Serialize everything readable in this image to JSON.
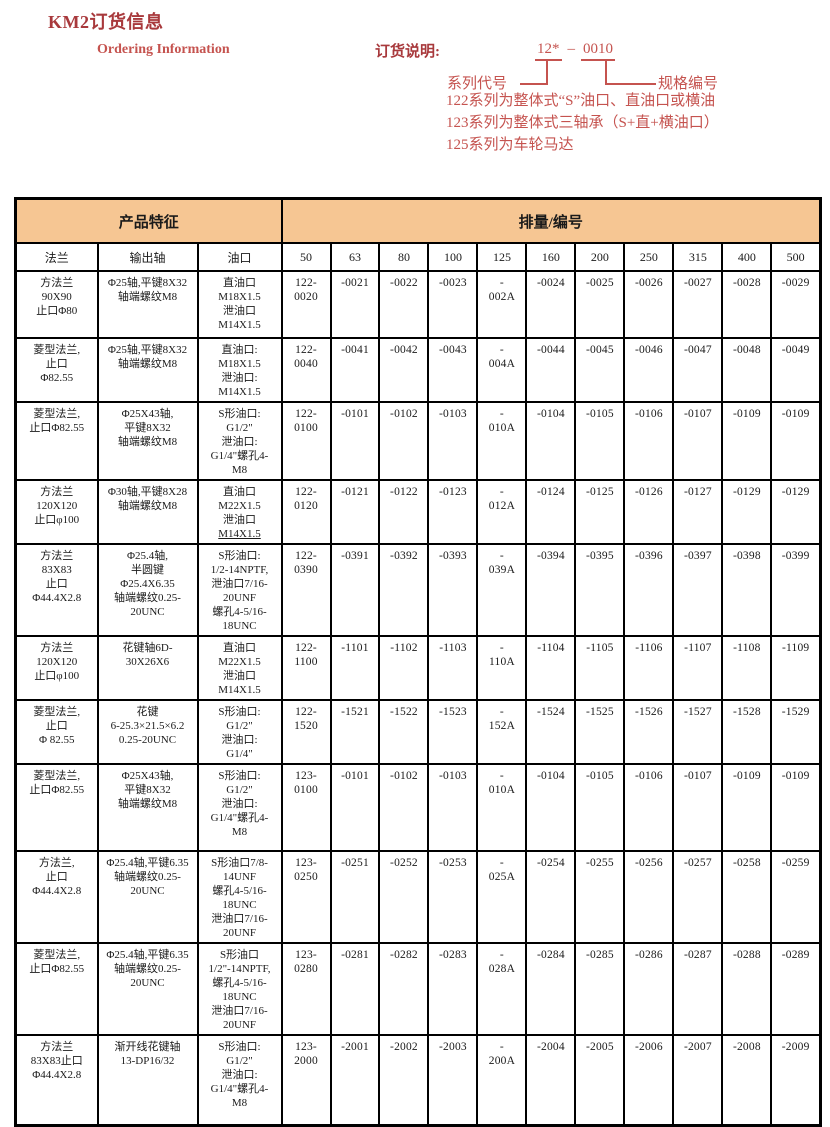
{
  "header": {
    "title": "KM2订货信息",
    "subtitle_en": "Ordering Information",
    "ordering_label": "订货说明:",
    "code_prefix": "12*",
    "code_dash": "–",
    "code_suffix": "0010",
    "series_label": "系列代号",
    "spec_label": "规格编号",
    "notes": [
      "122系列为整体式“S”油口、直油口或横油",
      "123系列为整体式三轴承（S+直+横油口）",
      "125系列为车轮马达"
    ]
  },
  "colors": {
    "title_red": "#a8393c",
    "accent_red": "#c5534f",
    "table_header_fill": "#f6c693",
    "border_black": "#000000"
  },
  "table": {
    "group_headers": {
      "features": "产品特征",
      "displacement": "排量/编号"
    },
    "feature_columns": [
      "法兰",
      "输出轴",
      "油口"
    ],
    "displacement_columns": [
      "50",
      "63",
      "80",
      "100",
      "125",
      "160",
      "200",
      "250",
      "315",
      "400",
      "500"
    ],
    "rows": [
      {
        "flange": "方法兰\n90X90\n止口Φ80",
        "shaft": "Φ25轴,平键8X32\n轴端螺纹M8",
        "port": "直油口\nM18X1.5\n泄油口\nM14X1.5",
        "port_underline_last": false,
        "codes": [
          "122-\n0020",
          "-0021",
          "-0022",
          "-0023",
          "-\n002A",
          "-0024",
          "-0025",
          "-0026",
          "-0027",
          "-0028",
          "-0029"
        ]
      },
      {
        "flange": "菱型法兰,\n止口\nΦ82.55",
        "shaft": "Φ25轴,平键8X32\n轴端螺纹M8",
        "port": "直油口:\nM18X1.5\n泄油口:\nM14X1.5",
        "port_underline_last": false,
        "codes": [
          "122-\n0040",
          "-0041",
          "-0042",
          "-0043",
          "-\n004A",
          "-0044",
          "-0045",
          "-0046",
          "-0047",
          "-0048",
          "-0049"
        ]
      },
      {
        "flange": "菱型法兰,\n止口Φ82.55",
        "shaft": "Φ25X43轴,\n平键8X32\n轴端螺纹M8",
        "port": "S形油口:\nG1/2\"\n泄油口:\nG1/4\"螺孔4-\nM8",
        "port_underline_last": false,
        "codes": [
          "122-\n0100",
          "-0101",
          "-0102",
          "-0103",
          "-\n010A",
          "-0104",
          "-0105",
          "-0106",
          "-0107",
          "-0109",
          "-0109"
        ]
      },
      {
        "flange": "方法兰\n120X120\n止口φ100",
        "shaft": "Φ30轴,平键8X28\n轴端螺纹M8",
        "port": "直油口\nM22X1.5\n泄油口\nM14X1.5",
        "port_underline_last": true,
        "codes": [
          "122-\n0120",
          "-0121",
          "-0122",
          "-0123",
          "-\n012A",
          "-0124",
          "-0125",
          "-0126",
          "-0127",
          "-0129",
          "-0129"
        ]
      },
      {
        "flange": "方法兰\n83X83\n止口\nΦ44.4X2.8",
        "shaft": "Φ25.4轴,\n半圆键\nΦ25.4X6.35\n轴端螺纹0.25-\n20UNC",
        "port": "S形油口:\n1/2-14NPTF,\n泄油口7/16-\n20UNF\n螺孔4-5/16-\n18UNC",
        "port_underline_last": false,
        "codes": [
          "122-\n0390",
          "-0391",
          "-0392",
          "-0393",
          "-\n039A",
          "-0394",
          "-0395",
          "-0396",
          "-0397",
          "-0398",
          "-0399"
        ]
      },
      {
        "flange": "方法兰\n120X120\n止口φ100",
        "shaft": "花键轴6D-\n30X26X6",
        "port": "直油口\nM22X1.5\n泄油口\nM14X1.5",
        "port_underline_last": false,
        "codes": [
          "122-\n1100",
          "-1101",
          "-1102",
          "-1103",
          "-\n110A",
          "-1104",
          "-1105",
          "-1106",
          "-1107",
          "-1108",
          "-1109"
        ]
      },
      {
        "flange": "菱型法兰,\n止口\nΦ 82.55",
        "shaft": "花键\n6-25.3×21.5×6.2\n0.25-20UNC",
        "port": "S形油口:\nG1/2\"\n泄油口:\nG1/4\"",
        "port_underline_last": false,
        "codes": [
          "122-\n1520",
          "-1521",
          "-1522",
          "-1523",
          "-\n152A",
          "-1524",
          "-1525",
          "-1526",
          "-1527",
          "-1528",
          "-1529"
        ]
      },
      {
        "flange": "菱型法兰,\n止口Φ82.55",
        "shaft": "Φ25X43轴,\n平键8X32\n轴端螺纹M8",
        "port": "S形油口:\nG1/2\"\n泄油口:\nG1/4\"螺孔4-\nM8",
        "port_underline_last": false,
        "codes": [
          "123-\n0100",
          "-0101",
          "-0102",
          "-0103",
          "-\n010A",
          "-0104",
          "-0105",
          "-0106",
          "-0107",
          "-0109",
          "-0109"
        ]
      },
      {
        "flange": "方法兰,\n止口\nΦ44.4X2.8",
        "shaft": "Φ25.4轴,平键6.35\n轴端螺纹0.25-\n20UNC",
        "port": "S形油口7/8-\n14UNF\n螺孔4-5/16-\n18UNC\n泄油口7/16-\n20UNF",
        "port_underline_last": false,
        "codes": [
          "123-\n0250",
          "-0251",
          "-0252",
          "-0253",
          "-\n025A",
          "-0254",
          "-0255",
          "-0256",
          "-0257",
          "-0258",
          "-0259"
        ]
      },
      {
        "flange": "菱型法兰,\n止口Φ82.55",
        "shaft": "Φ25.4轴,平键6.35\n轴端螺纹0.25-\n20UNC",
        "port": "S形油口\n1/2\"-14NPTF,\n螺孔4-5/16-\n18UNC\n泄油口7/16-\n20UNF",
        "port_underline_last": false,
        "codes": [
          "123-\n0280",
          "-0281",
          "-0282",
          "-0283",
          "-\n028A",
          "-0284",
          "-0285",
          "-0286",
          "-0287",
          "-0288",
          "-0289"
        ]
      },
      {
        "flange": "方法兰\n83X83止口\nΦ44.4X2.8",
        "shaft": "渐开线花键轴\n13-DP16/32",
        "port": "S形油口:\nG1/2\"\n泄油口:\nG1/4\"螺孔4-\nM8",
        "port_underline_last": false,
        "codes": [
          "123-\n2000",
          "-2001",
          "-2002",
          "-2003",
          "-\n200A",
          "-2004",
          "-2005",
          "-2006",
          "-2007",
          "-2008",
          "-2009"
        ]
      }
    ]
  }
}
